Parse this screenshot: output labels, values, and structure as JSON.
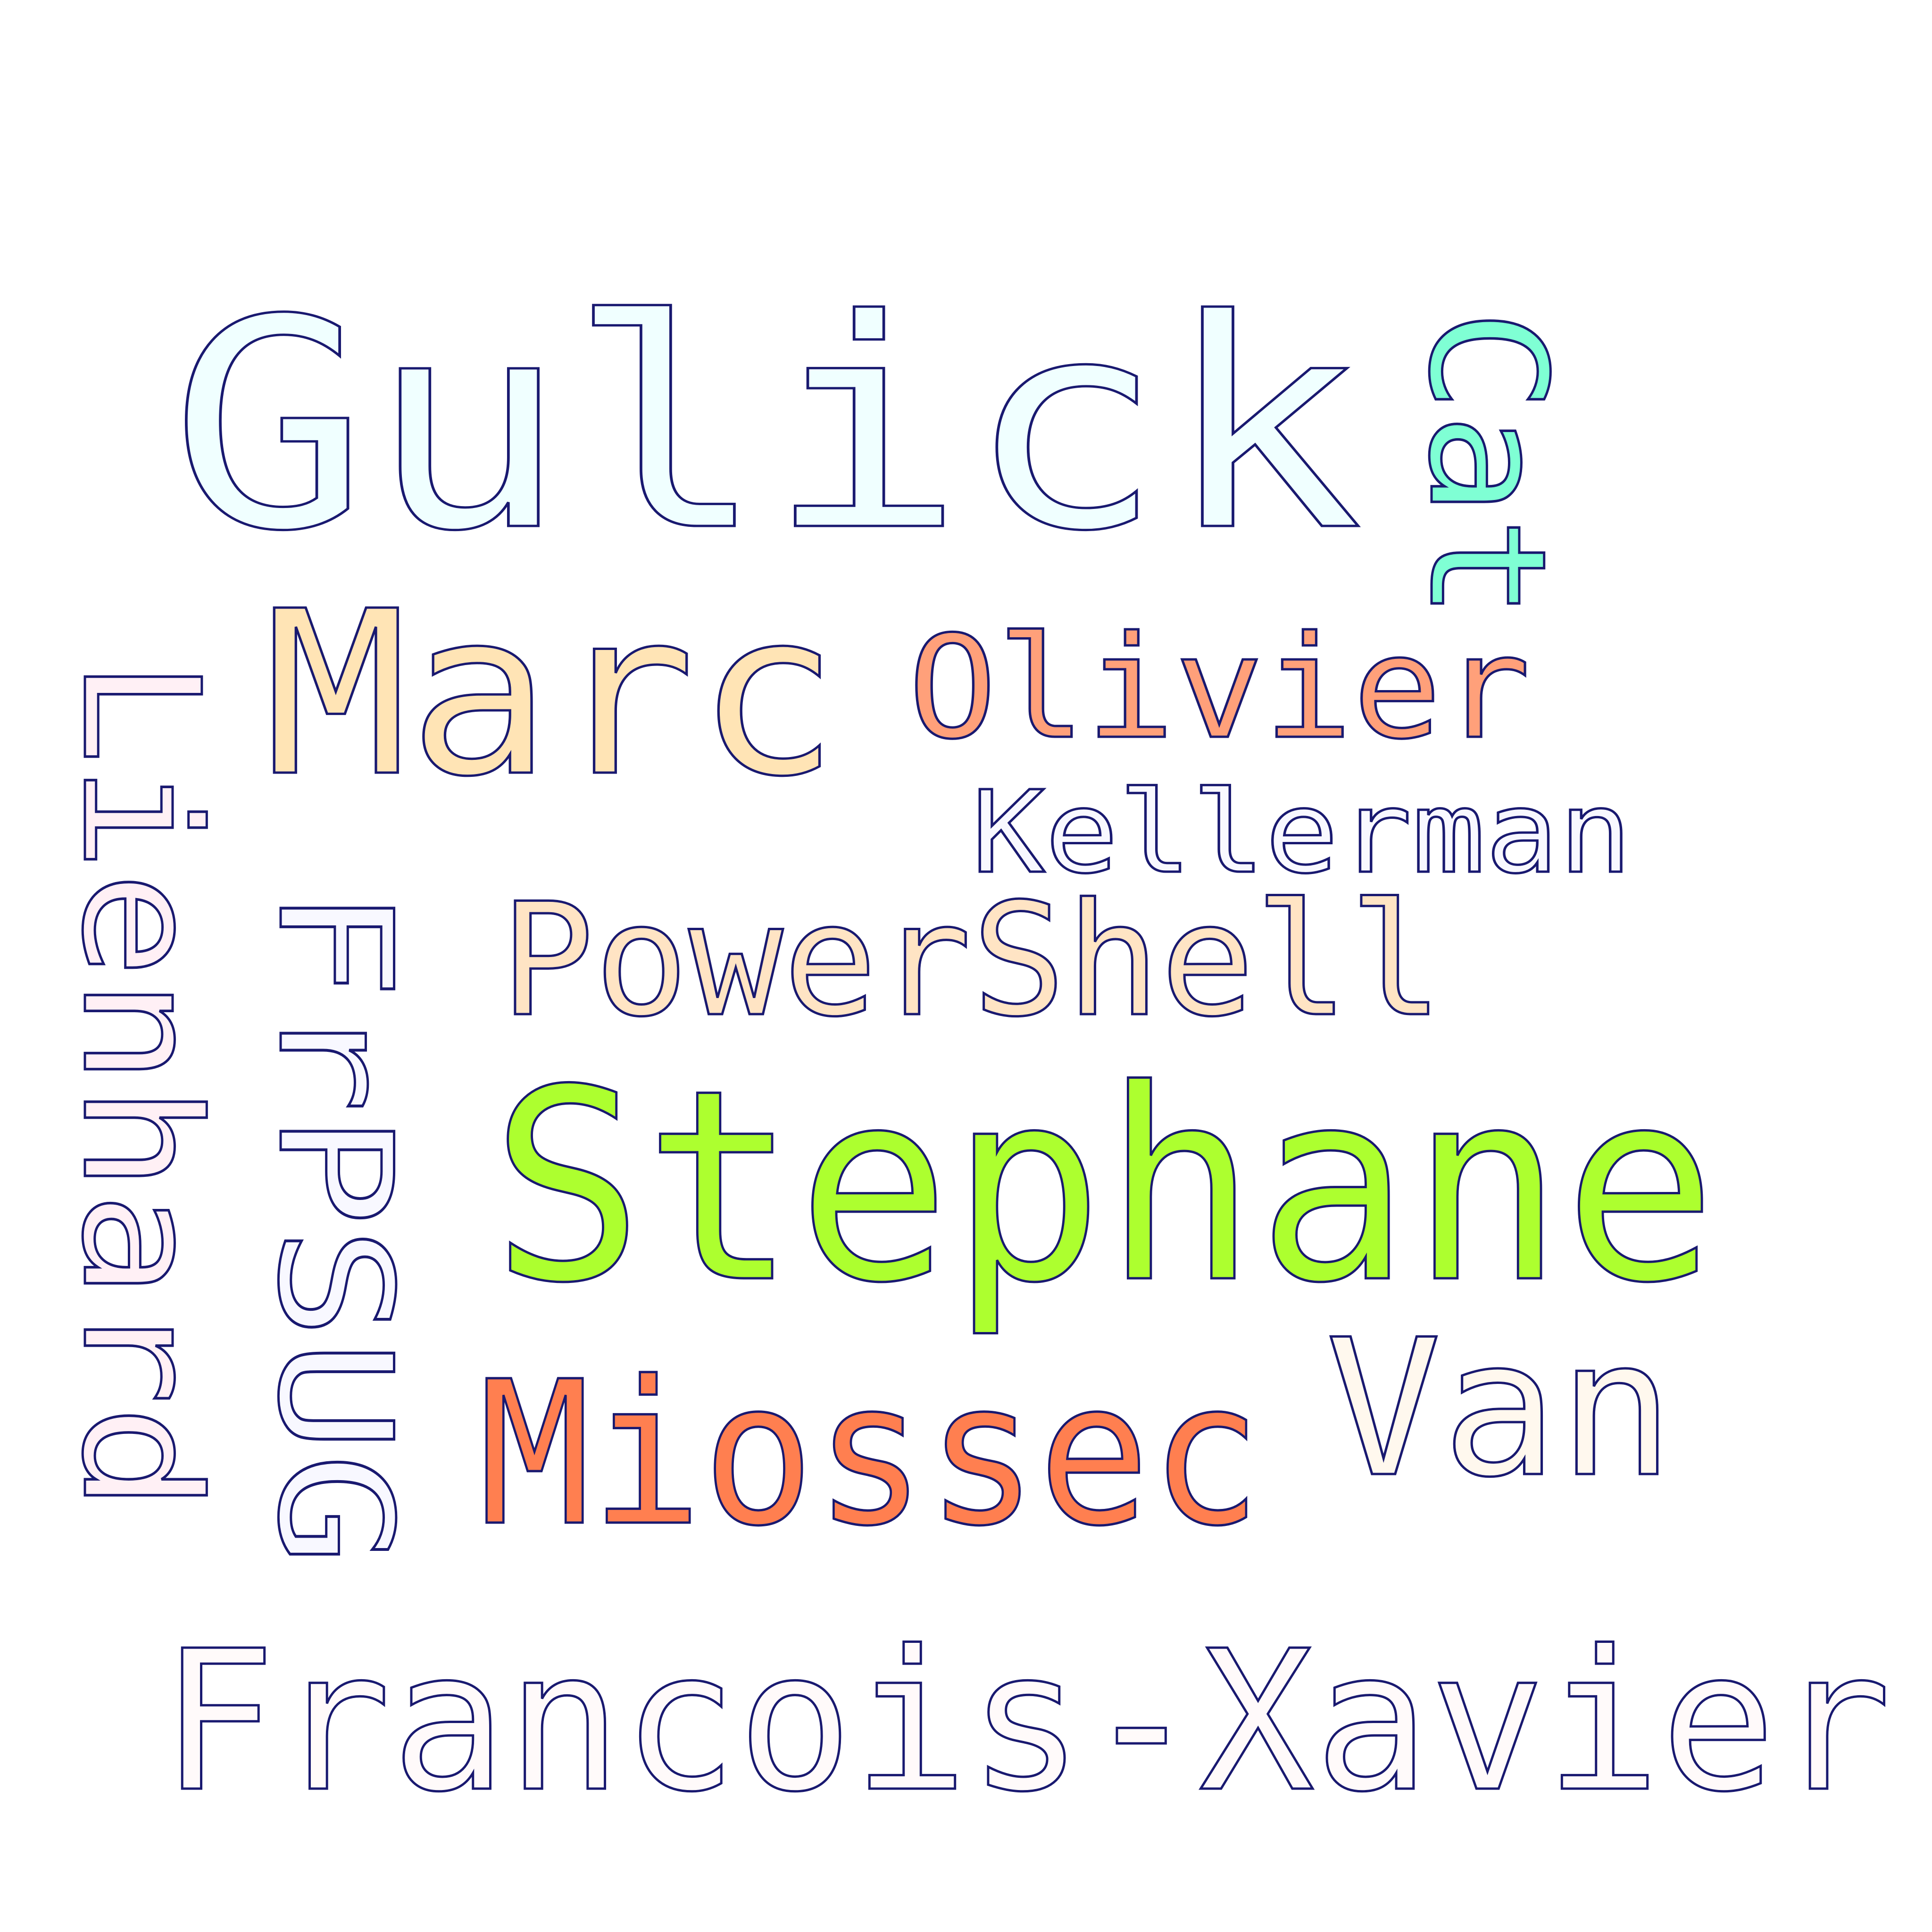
{
  "words": [
    {
      "id": "gulick",
      "text": "Gulick",
      "color": "#F0FFFF"
    },
    {
      "id": "cat",
      "text": "Cat",
      "color": "#7FFFD4"
    },
    {
      "id": "marc",
      "text": "Marc",
      "color": "#FFE4B5"
    },
    {
      "id": "olivier",
      "text": "Olivier",
      "color": "#FFA07A"
    },
    {
      "id": "lienhard",
      "text": "Lienhard",
      "color": "#FFF0F5"
    },
    {
      "id": "kellerman",
      "text": "Kellerman",
      "color": "#F8F8FF"
    },
    {
      "id": "frpsug",
      "text": "FrPSUG",
      "color": "#F8F8FF"
    },
    {
      "id": "powershell",
      "text": "PowerShell",
      "color": "#FFE4C4"
    },
    {
      "id": "stephane",
      "text": "Stephane",
      "color": "#ADFF2F"
    },
    {
      "id": "van",
      "text": "Van",
      "color": "#FFF8EE"
    },
    {
      "id": "miossec",
      "text": "Miossec",
      "color": "#FF7F50"
    },
    {
      "id": "francois-xavier",
      "text": "Francois-Xavier",
      "color": "#FFFAFA"
    }
  ]
}
